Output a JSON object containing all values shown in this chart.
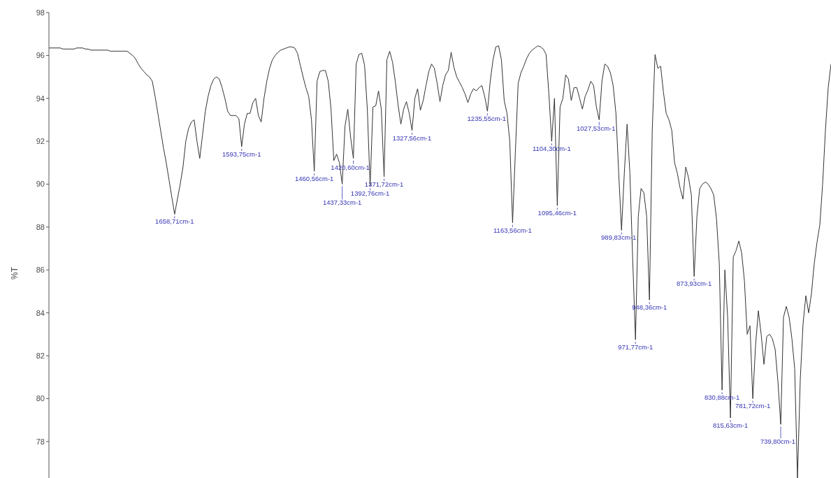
{
  "chart_data": {
    "type": "line",
    "ylabel": "%T",
    "marker": "none",
    "line_style": "solid",
    "color": "#333333",
    "categories": [
      null,
      null,
      null,
      null,
      null,
      null,
      null,
      null,
      null,
      null,
      null,
      null,
      null,
      null,
      null,
      null,
      null,
      null,
      null,
      null,
      null,
      null,
      null,
      null,
      null,
      null,
      null,
      null,
      null,
      null,
      null,
      null,
      null,
      null,
      null,
      null,
      null,
      null,
      null,
      null,
      null,
      null,
      null,
      null,
      null,
      null,
      null,
      null,
      null,
      null,
      null,
      null,
      null,
      null,
      null,
      null,
      null,
      null,
      null,
      null,
      null,
      null,
      null,
      null,
      null,
      null,
      null,
      null,
      null,
      null,
      null,
      null,
      null,
      null,
      null,
      null,
      null,
      null,
      null,
      null,
      null,
      null,
      null,
      null,
      null,
      null,
      null,
      null,
      null,
      null,
      null,
      null,
      null,
      null,
      null,
      null,
      null,
      null,
      null,
      null,
      null,
      null,
      null,
      null,
      null,
      null,
      null,
      null,
      null,
      null,
      null,
      null,
      null,
      null,
      null,
      null,
      null,
      null,
      null,
      null,
      null,
      null,
      null,
      null,
      null,
      null,
      null,
      null,
      null,
      null,
      null,
      null,
      null,
      null,
      null,
      null,
      null,
      null,
      null,
      null,
      null,
      null,
      null,
      null,
      null,
      null,
      null,
      null,
      null,
      null,
      null,
      null,
      null,
      null,
      null,
      null,
      null,
      null,
      null,
      null,
      null,
      null,
      null,
      null,
      null,
      null,
      null,
      null,
      null,
      null,
      null,
      null,
      null,
      null,
      null,
      null,
      null,
      null,
      null,
      null,
      null,
      null,
      null,
      null,
      null,
      null,
      null,
      null,
      null,
      null,
      null,
      null,
      null,
      null,
      null,
      null,
      null,
      null,
      null,
      null,
      null,
      null,
      null,
      null,
      null,
      null,
      null,
      null,
      null,
      null,
      null,
      null,
      null,
      null,
      null,
      null,
      null,
      null,
      null,
      null,
      null,
      null,
      null,
      null,
      null,
      null,
      null,
      null,
      null,
      null,
      null,
      null,
      null,
      null,
      null,
      null,
      null,
      null,
      null,
      null,
      null,
      null,
      null,
      null,
      null,
      null,
      null,
      null,
      null,
      null,
      null,
      null,
      null,
      null,
      null,
      null,
      null,
      null,
      null,
      null,
      null,
      null,
      null,
      null,
      null,
      null,
      null,
      null,
      null,
      null,
      null,
      null,
      null,
      null,
      null,
      null,
      null,
      null,
      null,
      null,
      null
    ],
    "values": [
      96.35,
      96.35,
      96.35,
      96.35,
      96.35,
      96.3,
      96.3,
      96.3,
      96.3,
      96.3,
      96.35,
      96.35,
      96.35,
      96.3,
      96.3,
      96.25,
      96.25,
      96.25,
      96.25,
      96.25,
      96.25,
      96.25,
      96.2,
      96.2,
      96.2,
      96.2,
      96.2,
      96.2,
      96.2,
      96.1,
      96.0,
      95.85,
      95.6,
      95.4,
      95.25,
      95.1,
      95.0,
      94.8,
      94.1,
      93.3,
      92.5,
      91.7,
      91.0,
      90.2,
      89.4,
      88.6,
      89.3,
      90.0,
      90.8,
      92.0,
      92.6,
      92.9,
      93.0,
      92.0,
      91.2,
      92.3,
      93.4,
      94.1,
      94.6,
      94.9,
      95.0,
      94.9,
      94.5,
      94.0,
      93.4,
      93.2,
      93.2,
      93.2,
      93.05,
      91.75,
      92.8,
      93.3,
      93.3,
      93.8,
      94.0,
      93.2,
      92.9,
      94.0,
      94.8,
      95.4,
      95.8,
      96.0,
      96.15,
      96.25,
      96.3,
      96.35,
      96.4,
      96.4,
      96.35,
      96.1,
      95.55,
      95.0,
      94.5,
      94.1,
      93.0,
      90.6,
      94.8,
      95.25,
      95.3,
      95.3,
      94.8,
      93.5,
      91.1,
      91.4,
      91.0,
      90.0,
      92.7,
      93.5,
      92.2,
      91.2,
      95.6,
      96.05,
      96.1,
      95.55,
      93.5,
      89.9,
      93.6,
      93.65,
      94.35,
      93.5,
      90.35,
      95.8,
      96.2,
      95.7,
      94.8,
      93.7,
      92.8,
      93.5,
      93.85,
      93.3,
      92.5,
      94.0,
      94.45,
      93.45,
      93.9,
      94.6,
      95.25,
      95.6,
      95.4,
      94.7,
      93.85,
      94.6,
      95.1,
      95.3,
      96.15,
      95.45,
      95.0,
      94.75,
      94.5,
      94.2,
      93.8,
      94.2,
      94.45,
      94.35,
      94.5,
      94.6,
      94.1,
      93.4,
      94.8,
      95.8,
      96.4,
      96.45,
      95.8,
      93.9,
      93.3,
      92.0,
      88.2,
      91.5,
      94.7,
      95.2,
      95.5,
      95.85,
      96.1,
      96.25,
      96.35,
      96.45,
      96.4,
      96.3,
      96.05,
      94.2,
      92.0,
      94.0,
      89.0,
      93.6,
      94.0,
      95.1,
      94.9,
      93.9,
      94.5,
      94.5,
      94.0,
      93.5,
      94.1,
      94.4,
      94.8,
      94.6,
      93.6,
      93.0,
      94.8,
      95.6,
      95.5,
      95.2,
      94.6,
      93.3,
      90.5,
      87.85,
      90.5,
      92.8,
      90.5,
      86.5,
      82.75,
      88.5,
      89.8,
      89.6,
      88.5,
      84.6,
      92.5,
      96.05,
      95.4,
      95.5,
      94.3,
      93.3,
      93.0,
      92.5,
      91.0,
      90.5,
      89.8,
      89.3,
      90.8,
      90.3,
      89.5,
      85.7,
      88.5,
      89.8,
      90.0,
      90.1,
      90.0,
      89.8,
      89.5,
      88.4,
      86.3,
      80.4,
      86.0,
      83.8,
      79.1,
      86.6,
      86.9,
      87.35,
      86.8,
      85.5,
      83.0,
      83.4,
      80.0,
      82.5,
      84.1,
      83.0,
      81.6,
      82.9,
      83.0,
      82.8,
      82.3,
      80.8,
      78.8,
      83.8,
      84.3,
      83.8,
      82.8,
      81.4,
      76.3,
      80.9,
      83.5,
      84.8,
      84.0,
      84.9,
      86.3,
      87.3,
      88.1,
      90.0,
      92.5,
      94.5,
      95.6
    ],
    "annotations": [
      {
        "text": "1658,71cm-1",
        "y": 88.6
      },
      {
        "text": "1593,75cm-1",
        "y": 91.75
      },
      {
        "text": "1460,56cm-1",
        "y": 90.6
      },
      {
        "text": "1437,33cm-1",
        "y": 90.0
      },
      {
        "text": "1420,60cm-1",
        "y": 91.2
      },
      {
        "text": "1392,76cm-1",
        "y": 89.9
      },
      {
        "text": "1371,72cm-1",
        "y": 90.35
      },
      {
        "text": "1327,56cm-1",
        "y": 92.5
      },
      {
        "text": "1235,55cm-1",
        "y": 93.4
      },
      {
        "text": "1163,56cm-1",
        "y": 88.2
      },
      {
        "text": "1104,30cm-1",
        "y": 92.0
      },
      {
        "text": "1095,46cm-1",
        "y": 89.0
      },
      {
        "text": "1027,53cm-1",
        "y": 93.0
      },
      {
        "text": "989,83cm-1",
        "y": 87.85
      },
      {
        "text": "971,77cm-1",
        "y": 82.75
      },
      {
        "text": "948,36cm-1",
        "y": 84.6
      },
      {
        "text": "873,93cm-1",
        "y": 85.7
      },
      {
        "text": "830,88cm-1",
        "y": 80.4
      },
      {
        "text": "815,63cm-1",
        "y": 79.1
      },
      {
        "text": "781,72cm-1",
        "y": 80.0
      },
      {
        "text": "739,80cm-1",
        "y": 78.8
      }
    ],
    "ylim": [
      76.3,
      98
    ],
    "yticks": [
      78,
      80,
      82,
      84,
      86,
      88,
      90,
      92,
      94,
      96,
      98
    ]
  }
}
